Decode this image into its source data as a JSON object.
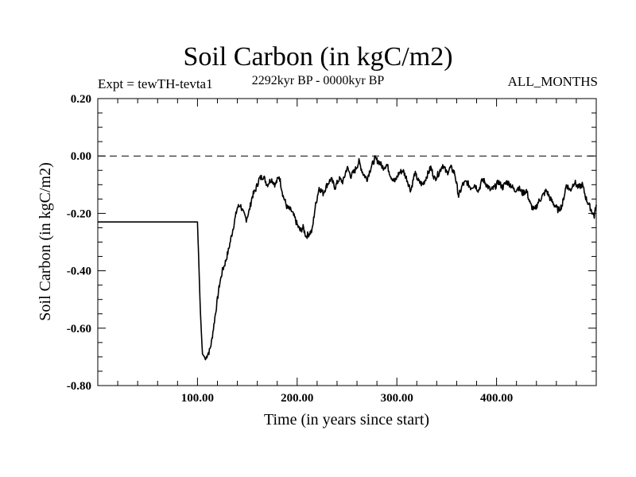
{
  "chart_data": {
    "type": "line",
    "title": "Soil Carbon (in kgC/m2)",
    "subtitle": "2292kyr BP - 0000kyr BP",
    "experiment": "Expt = tewTH-tevta1",
    "months": "ALL_MONTHS",
    "xlabel": "Time (in years since start)",
    "ylabel": "Soil Carbon (in kgC/m2)",
    "xlim": [
      0,
      500
    ],
    "ylim": [
      -0.8,
      0.2
    ],
    "xticks": [
      {
        "value": 100,
        "label": "100.00"
      },
      {
        "value": 200,
        "label": "200.00"
      },
      {
        "value": 300,
        "label": "300.00"
      },
      {
        "value": 400,
        "label": "400.00"
      }
    ],
    "yticks": [
      {
        "value": 0.2,
        "label": "0.20"
      },
      {
        "value": 0.0,
        "label": "0.00"
      },
      {
        "value": -0.2,
        "label": "-0.20"
      },
      {
        "value": -0.4,
        "label": "-0.40"
      },
      {
        "value": -0.6,
        "label": "-0.60"
      },
      {
        "value": -0.8,
        "label": "-0.80"
      }
    ],
    "reference_line": 0.0,
    "series": [
      {
        "name": "Soil Carbon",
        "x": [
          0,
          99,
          100,
          103,
          105,
          107,
          108,
          110,
          112,
          114,
          116,
          118,
          120,
          122,
          125,
          128,
          131,
          134,
          137,
          140,
          143,
          146,
          149,
          152,
          155,
          158,
          162,
          166,
          170,
          174,
          178,
          182,
          186,
          190,
          194,
          198,
          200,
          203,
          206,
          209,
          212,
          215,
          218,
          222,
          226,
          230,
          234,
          238,
          242,
          246,
          250,
          254,
          258,
          262,
          266,
          270,
          274,
          278,
          282,
          286,
          290,
          294,
          298,
          302,
          306,
          310,
          314,
          318,
          322,
          326,
          330,
          334,
          338,
          342,
          346,
          350,
          354,
          358,
          362,
          366,
          370,
          374,
          378,
          382,
          386,
          390,
          394,
          398,
          402,
          406,
          410,
          414,
          418,
          422,
          426,
          430,
          434,
          438,
          442,
          446,
          450,
          454,
          458,
          462,
          466,
          470,
          474,
          478,
          482,
          486,
          490,
          494,
          498,
          500
        ],
        "y": [
          -0.23,
          -0.23,
          -0.23,
          -0.55,
          -0.69,
          -0.7,
          -0.71,
          -0.69,
          -0.68,
          -0.65,
          -0.6,
          -0.55,
          -0.5,
          -0.45,
          -0.4,
          -0.37,
          -0.33,
          -0.28,
          -0.23,
          -0.18,
          -0.17,
          -0.2,
          -0.22,
          -0.19,
          -0.14,
          -0.12,
          -0.08,
          -0.07,
          -0.1,
          -0.08,
          -0.1,
          -0.07,
          -0.14,
          -0.18,
          -0.19,
          -0.22,
          -0.24,
          -0.26,
          -0.25,
          -0.28,
          -0.27,
          -0.26,
          -0.18,
          -0.11,
          -0.13,
          -0.1,
          -0.08,
          -0.11,
          -0.08,
          -0.09,
          -0.04,
          -0.07,
          -0.05,
          -0.02,
          -0.06,
          -0.08,
          -0.04,
          -0.01,
          -0.02,
          -0.04,
          -0.03,
          -0.07,
          -0.09,
          -0.06,
          -0.05,
          -0.08,
          -0.12,
          -0.06,
          -0.09,
          -0.1,
          -0.07,
          -0.04,
          -0.08,
          -0.06,
          -0.03,
          -0.06,
          -0.04,
          -0.06,
          -0.14,
          -0.1,
          -0.09,
          -0.11,
          -0.1,
          -0.12,
          -0.08,
          -0.1,
          -0.12,
          -0.11,
          -0.09,
          -0.11,
          -0.09,
          -0.1,
          -0.12,
          -0.11,
          -0.13,
          -0.12,
          -0.17,
          -0.19,
          -0.16,
          -0.14,
          -0.12,
          -0.15,
          -0.17,
          -0.19,
          -0.17,
          -0.1,
          -0.12,
          -0.09,
          -0.11,
          -0.1,
          -0.15,
          -0.18,
          -0.21,
          -0.17
        ]
      }
    ]
  }
}
